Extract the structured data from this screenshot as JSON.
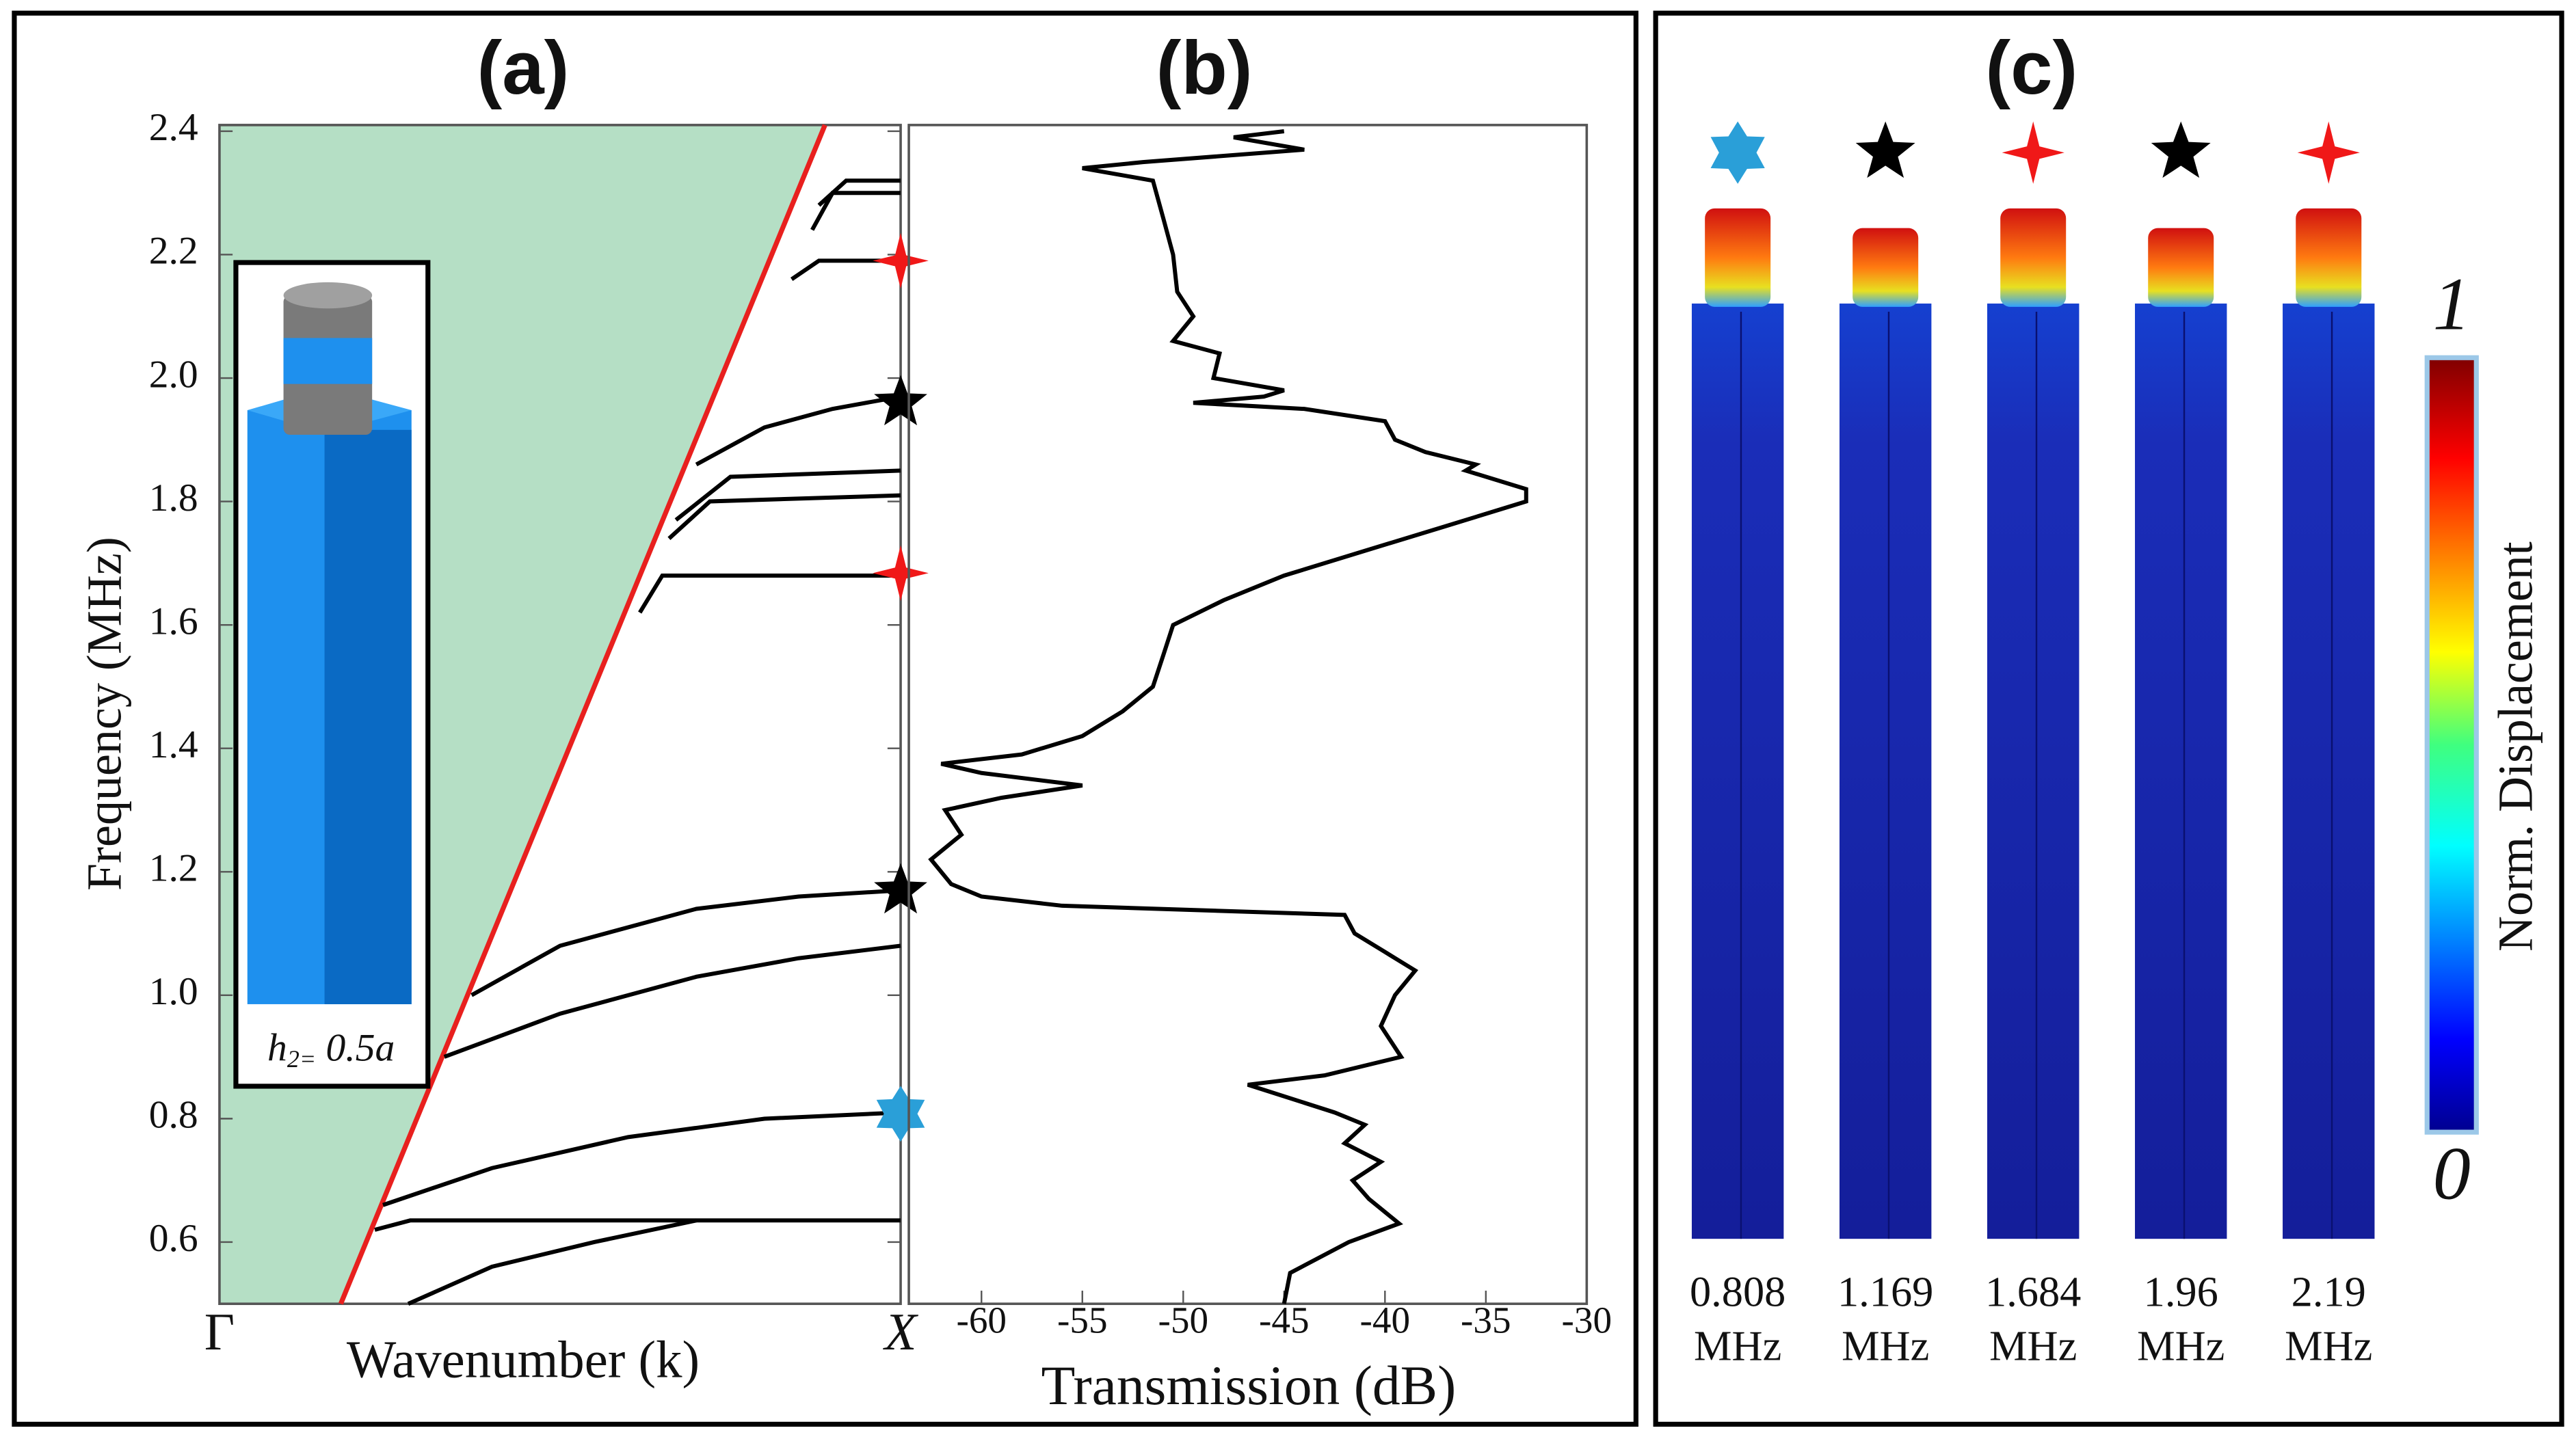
{
  "chart_data": [
    {
      "type": "line",
      "label": "(a)",
      "xlabel": "Wavenumber (k)",
      "ylabel": "Frequency (MHz)",
      "xlim": [
        0,
        1
      ],
      "xticks": [
        {
          "value": 0,
          "label": "Γ"
        },
        {
          "value": 1,
          "label": "X"
        }
      ],
      "ylim": [
        0.5,
        2.41
      ],
      "yticks": [
        0.6,
        0.8,
        {
          "value": 1,
          "label": "1.0"
        },
        1.2,
        1.4,
        1.6,
        1.8,
        {
          "value": 2,
          "label": "2.0"
        },
        2.2,
        2.4
      ],
      "light_line": {
        "x": [
          0.178,
          0.889
        ],
        "values": [
          0.5,
          2.41
        ],
        "color": "#e8201e",
        "fill": "#b5dfc5"
      },
      "series": [
        {
          "color": "#000000",
          "x": [
            0.277,
            0.4,
            0.55,
            0.7
          ],
          "values": [
            0.5,
            0.56,
            0.6,
            0.635
          ]
        },
        {
          "color": "#000000",
          "x": [
            0.228,
            0.28,
            1
          ],
          "values": [
            0.62,
            0.635,
            0.635
          ]
        },
        {
          "color": "#000000",
          "x": [
            0.24,
            0.4,
            0.6,
            0.8,
            1
          ],
          "values": [
            0.66,
            0.72,
            0.77,
            0.8,
            0.81
          ]
        },
        {
          "color": "#000000",
          "x": [
            0.33,
            0.5,
            0.7,
            0.85,
            1
          ],
          "values": [
            0.9,
            0.97,
            1.03,
            1.06,
            1.08
          ]
        },
        {
          "color": "#000000",
          "x": [
            0.37,
            0.5,
            0.7,
            0.85,
            1
          ],
          "values": [
            1.0,
            1.08,
            1.14,
            1.16,
            1.17
          ]
        },
        {
          "color": "#000000",
          "x": [
            0.617,
            0.65,
            1
          ],
          "values": [
            1.62,
            1.68,
            1.68
          ]
        },
        {
          "color": "#000000",
          "x": [
            0.66,
            0.72,
            1
          ],
          "values": [
            1.74,
            1.8,
            1.81
          ]
        },
        {
          "color": "#000000",
          "x": [
            0.67,
            0.75,
            1
          ],
          "values": [
            1.77,
            1.84,
            1.85
          ]
        },
        {
          "color": "#000000",
          "x": [
            0.7,
            0.8,
            0.9,
            1
          ],
          "values": [
            1.86,
            1.92,
            1.95,
            1.97
          ]
        },
        {
          "color": "#000000",
          "x": [
            0.84,
            0.88,
            1
          ],
          "values": [
            2.16,
            2.19,
            2.19
          ]
        },
        {
          "color": "#000000",
          "x": [
            0.87,
            0.9,
            1
          ],
          "values": [
            2.24,
            2.3,
            2.3
          ]
        },
        {
          "color": "#000000",
          "x": [
            0.88,
            0.92,
            1
          ],
          "values": [
            2.28,
            2.32,
            2.32
          ]
        }
      ],
      "markers": [
        {
          "x": 1,
          "value": 0.808,
          "shape": "hexagram",
          "color": "#2a9fd8"
        },
        {
          "x": 1,
          "value": 1.169,
          "shape": "star5",
          "color": "#000000"
        },
        {
          "x": 1,
          "value": 1.684,
          "shape": "star4",
          "color": "#f01818"
        },
        {
          "x": 1,
          "value": 1.96,
          "shape": "star5",
          "color": "#000000"
        },
        {
          "x": 1,
          "value": 2.19,
          "shape": "star4",
          "color": "#f01818"
        }
      ],
      "inset_label": {
        "base": "h",
        "sub": "2=",
        "rest": "0.5a"
      }
    },
    {
      "type": "line",
      "label": "(b)",
      "xlabel": "Transmission (dB)",
      "xlim": [
        -63.6,
        -30
      ],
      "xticks": [
        -60,
        -55,
        -50,
        -45,
        -40,
        -35,
        -30
      ],
      "ylim": [
        0.5,
        2.41
      ],
      "series": [
        {
          "color": "#000000",
          "x": [
            -45,
            -44.7,
            -41.8,
            -39.3,
            -40.8,
            -41.6,
            -40.2,
            -42,
            -41,
            -42.5,
            -46.8,
            -43,
            -39.2,
            -40.2,
            -39.5,
            -38.5,
            -40,
            -41.5,
            -42,
            -56,
            -60,
            -61.5,
            -62.5,
            -61,
            -61.8,
            -59,
            -55,
            -60,
            -62,
            -58,
            -55,
            -53,
            -51.5,
            -51,
            -50.5,
            -48,
            -45,
            -41,
            -37,
            -33,
            -33,
            -36,
            -35.5,
            -38,
            -39.5,
            -40,
            -44,
            -49.5,
            -46,
            -45,
            -48.5,
            -48.2,
            -50.5,
            -49.5,
            -50.3,
            -50.5,
            -51,
            -51.5,
            -55,
            -52,
            -44,
            -47.5,
            -45
          ],
          "values": [
            0.5,
            0.55,
            0.6,
            0.63,
            0.67,
            0.7,
            0.73,
            0.76,
            0.79,
            0.81,
            0.855,
            0.87,
            0.9,
            0.95,
            1.0,
            1.04,
            1.07,
            1.1,
            1.13,
            1.145,
            1.16,
            1.18,
            1.22,
            1.26,
            1.3,
            1.32,
            1.34,
            1.36,
            1.375,
            1.39,
            1.42,
            1.46,
            1.5,
            1.55,
            1.6,
            1.64,
            1.68,
            1.72,
            1.76,
            1.8,
            1.82,
            1.85,
            1.86,
            1.88,
            1.9,
            1.93,
            1.95,
            1.96,
            1.97,
            1.98,
            2.0,
            2.04,
            2.06,
            2.1,
            2.14,
            2.2,
            2.26,
            2.32,
            2.34,
            2.35,
            2.37,
            2.39,
            2.4
          ]
        }
      ]
    }
  ],
  "panel_c": {
    "label": "(c)",
    "modes": [
      {
        "freq": "0.808",
        "unit": "MHz",
        "shape": "hexagram",
        "color": "#2a9fd8"
      },
      {
        "freq": "1.169",
        "unit": "MHz",
        "shape": "star5",
        "color": "#000000"
      },
      {
        "freq": "1.684",
        "unit": "MHz",
        "shape": "star4",
        "color": "#f01818"
      },
      {
        "freq": "1.96",
        "unit": "MHz",
        "shape": "star5",
        "color": "#000000"
      },
      {
        "freq": "2.19",
        "unit": "MHz",
        "shape": "star4",
        "color": "#f01818"
      }
    ],
    "colorbar": {
      "max": 1,
      "min": 0,
      "title": "Norm. Displacement"
    }
  }
}
